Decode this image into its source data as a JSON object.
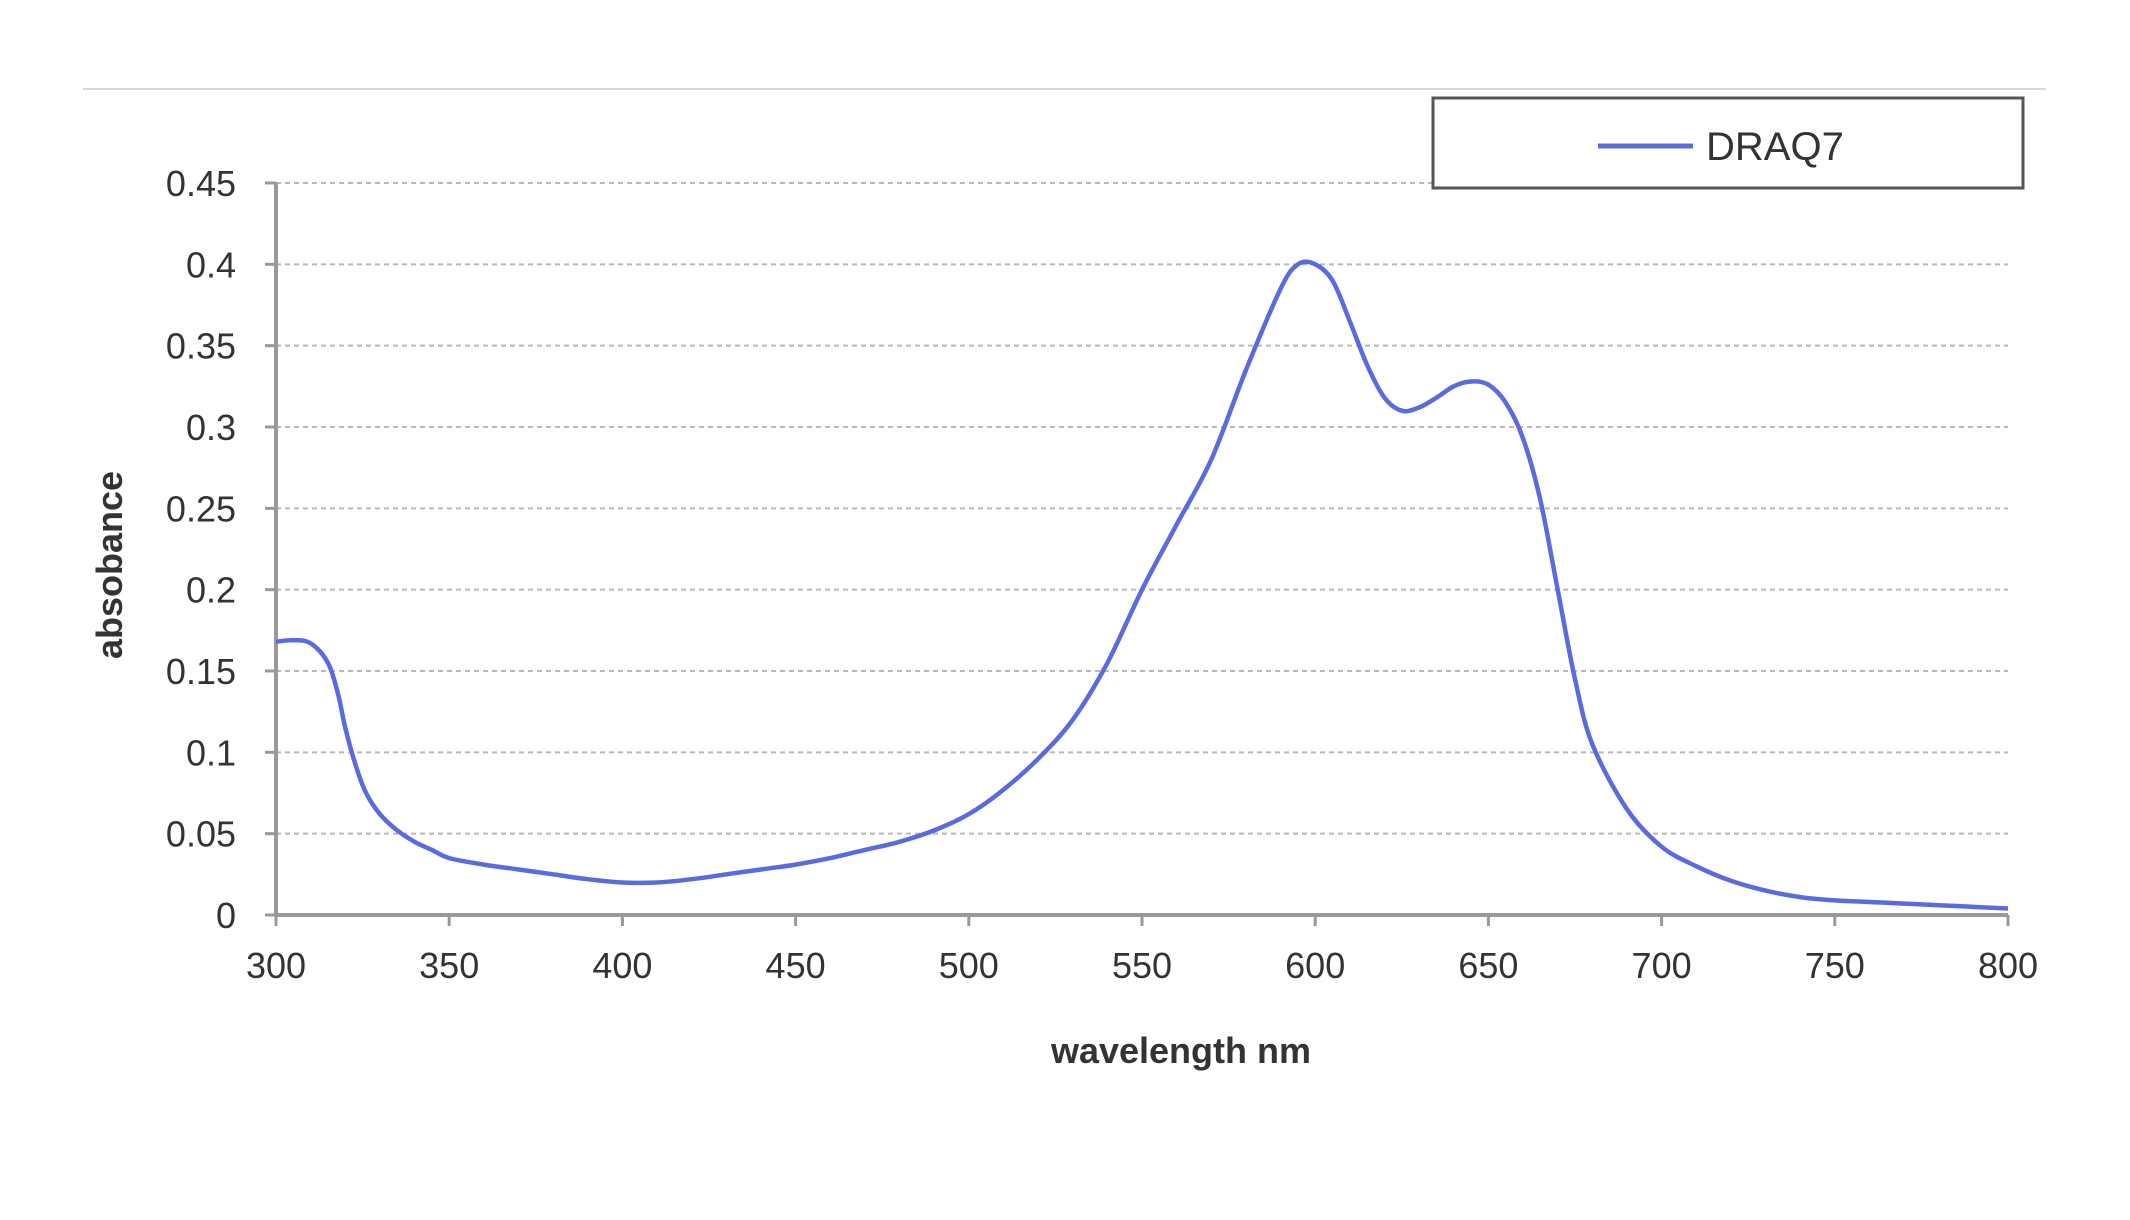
{
  "chart_data": {
    "type": "line",
    "title": "",
    "xlabel": "wavelength nm",
    "ylabel": "absobance",
    "xlim": [
      300,
      800
    ],
    "ylim": [
      0,
      0.45
    ],
    "x_ticks": [
      300,
      350,
      400,
      450,
      500,
      550,
      600,
      650,
      700,
      750,
      800
    ],
    "x_tick_labels": [
      "300",
      "350",
      "400",
      "450",
      "500",
      "550",
      "600",
      "650",
      "700",
      "750",
      "800"
    ],
    "y_ticks": [
      0,
      0.05,
      0.1,
      0.15,
      0.2,
      0.25,
      0.3,
      0.35,
      0.4,
      0.45
    ],
    "y_tick_labels": [
      "0",
      "0.05",
      "0.1",
      "0.15",
      "0.2",
      "0.25",
      "0.3",
      "0.35",
      "0.4",
      "0.45"
    ],
    "grid": true,
    "legend_position": "top-right",
    "series": [
      {
        "name": "DRAQ7",
        "color": "#5a6bde",
        "points": [
          [
            300,
            0.168
          ],
          [
            305,
            0.169
          ],
          [
            310,
            0.167
          ],
          [
            315,
            0.155
          ],
          [
            318,
            0.135
          ],
          [
            320,
            0.115
          ],
          [
            323,
            0.092
          ],
          [
            326,
            0.075
          ],
          [
            330,
            0.062
          ],
          [
            335,
            0.052
          ],
          [
            340,
            0.045
          ],
          [
            345,
            0.04
          ],
          [
            350,
            0.035
          ],
          [
            360,
            0.031
          ],
          [
            370,
            0.028
          ],
          [
            380,
            0.025
          ],
          [
            390,
            0.022
          ],
          [
            400,
            0.02
          ],
          [
            410,
            0.02
          ],
          [
            420,
            0.022
          ],
          [
            430,
            0.025
          ],
          [
            440,
            0.028
          ],
          [
            450,
            0.031
          ],
          [
            460,
            0.035
          ],
          [
            470,
            0.04
          ],
          [
            480,
            0.045
          ],
          [
            490,
            0.052
          ],
          [
            500,
            0.062
          ],
          [
            510,
            0.077
          ],
          [
            520,
            0.096
          ],
          [
            530,
            0.12
          ],
          [
            540,
            0.155
          ],
          [
            550,
            0.2
          ],
          [
            560,
            0.24
          ],
          [
            570,
            0.28
          ],
          [
            580,
            0.335
          ],
          [
            590,
            0.385
          ],
          [
            595,
            0.4
          ],
          [
            600,
            0.4
          ],
          [
            605,
            0.39
          ],
          [
            610,
            0.365
          ],
          [
            615,
            0.338
          ],
          [
            620,
            0.318
          ],
          [
            625,
            0.31
          ],
          [
            630,
            0.312
          ],
          [
            635,
            0.318
          ],
          [
            640,
            0.325
          ],
          [
            645,
            0.328
          ],
          [
            650,
            0.326
          ],
          [
            655,
            0.315
          ],
          [
            660,
            0.293
          ],
          [
            665,
            0.255
          ],
          [
            670,
            0.2
          ],
          [
            675,
            0.145
          ],
          [
            680,
            0.105
          ],
          [
            690,
            0.065
          ],
          [
            700,
            0.042
          ],
          [
            710,
            0.03
          ],
          [
            720,
            0.021
          ],
          [
            730,
            0.015
          ],
          [
            740,
            0.011
          ],
          [
            750,
            0.009
          ],
          [
            760,
            0.008
          ],
          [
            770,
            0.007
          ],
          [
            780,
            0.006
          ],
          [
            790,
            0.005
          ],
          [
            800,
            0.004
          ]
        ]
      }
    ]
  }
}
